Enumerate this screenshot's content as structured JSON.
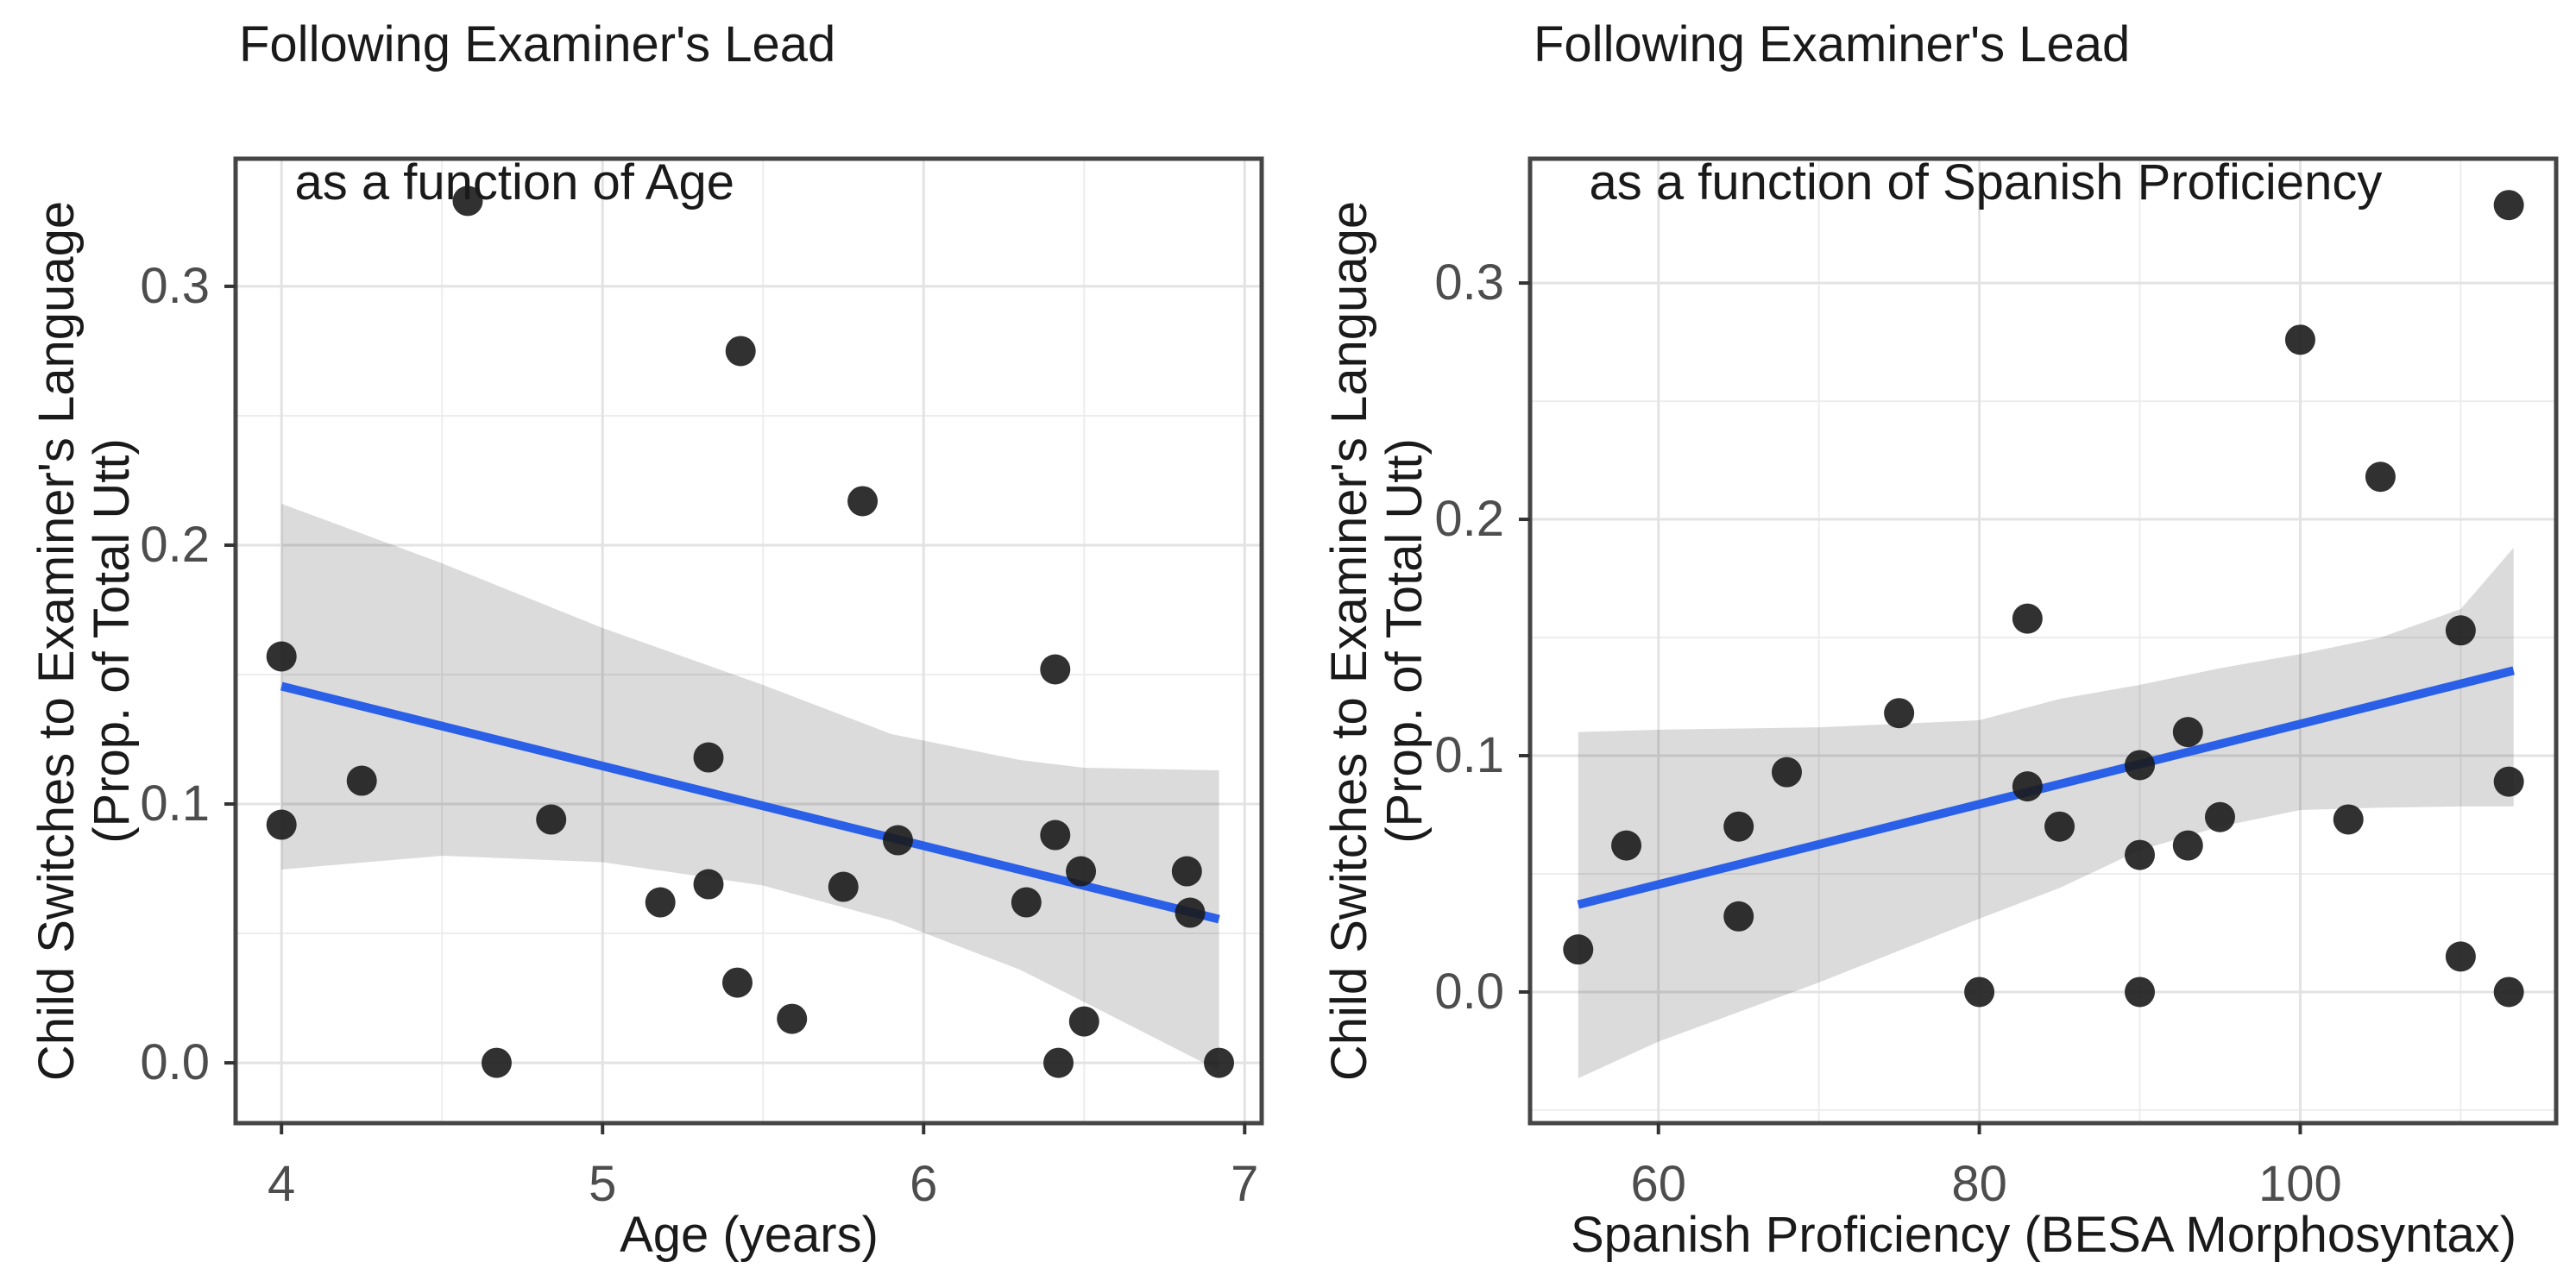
{
  "colors": {
    "background": "#ffffff",
    "point": "#1b1b1b",
    "smooth_line": "#2a5fe8",
    "ribbon": "rgba(0,0,0,0.14)",
    "grid_major": "#e3e3e3",
    "grid_minor": "#ededed",
    "panel_border": "#454545",
    "tick_mark": "#333333",
    "tick_label": "#4d4d4d",
    "text": "#1a1a1a"
  },
  "chart_data": [
    {
      "type": "scatter",
      "title_line1": "Following Examiner's Lead",
      "title_line2": "as a function of Age",
      "xlabel": "Age (years)",
      "ylabel_line1": "Child Switches to Examiner's Language",
      "ylabel_line2": "(Prop. of Total Utt)",
      "xlim": [
        3.857,
        7.053
      ],
      "ylim": [
        -0.0233,
        0.3493
      ],
      "grid": true,
      "legend": "none",
      "x_ticks": [
        {
          "v": 4,
          "label": "4"
        },
        {
          "v": 5,
          "label": "5"
        },
        {
          "v": 6,
          "label": "6"
        },
        {
          "v": 7,
          "label": "7"
        }
      ],
      "y_ticks": [
        {
          "v": 0.0,
          "label": "0.0"
        },
        {
          "v": 0.1,
          "label": "0.1"
        },
        {
          "v": 0.2,
          "label": "0.2"
        },
        {
          "v": 0.3,
          "label": "0.3"
        }
      ],
      "x_minor": [
        4.5,
        5.5,
        6.5
      ],
      "y_minor": [
        0.05,
        0.15,
        0.25
      ],
      "points": [
        [
          4.0,
          0.157
        ],
        [
          4.0,
          0.092
        ],
        [
          4.25,
          0.109
        ],
        [
          4.58,
          0.333
        ],
        [
          4.67,
          0.0
        ],
        [
          4.84,
          0.094
        ],
        [
          5.18,
          0.062
        ],
        [
          5.33,
          0.118
        ],
        [
          5.33,
          0.069
        ],
        [
          5.42,
          0.031
        ],
        [
          5.43,
          0.275
        ],
        [
          5.59,
          0.017
        ],
        [
          5.75,
          0.068
        ],
        [
          5.81,
          0.217
        ],
        [
          5.92,
          0.086
        ],
        [
          6.32,
          0.062
        ],
        [
          6.41,
          0.152
        ],
        [
          6.41,
          0.088
        ],
        [
          6.42,
          0.0
        ],
        [
          6.49,
          0.074
        ],
        [
          6.5,
          0.016
        ],
        [
          6.82,
          0.074
        ],
        [
          6.83,
          0.058
        ],
        [
          6.92,
          0.0
        ]
      ],
      "smooth": {
        "x1": 4.0,
        "y1": 0.1455,
        "x2": 6.92,
        "y2": 0.0555
      },
      "ribbon": {
        "x": [
          4.0,
          4.5,
          5.0,
          5.5,
          5.9,
          6.3,
          6.5,
          6.92
        ],
        "upper": [
          0.216,
          0.193,
          0.168,
          0.146,
          0.127,
          0.117,
          0.114,
          0.113
        ],
        "lower": [
          0.0747,
          0.08,
          0.0775,
          0.0685,
          0.055,
          0.036,
          0.0235,
          -0.003
        ]
      }
    },
    {
      "type": "scatter",
      "title_line1": "Following Examiner's Lead",
      "title_line2": "as a function of Spanish Proficiency",
      "xlabel": "Spanish Proficiency (BESA Morphosyntax)",
      "ylabel_line1": "Child Switches to Examiner's Language",
      "ylabel_line2": "(Prop. of Total Utt)",
      "xlim": [
        52.0,
        115.95
      ],
      "ylim": [
        -0.0555,
        0.3526
      ],
      "grid": true,
      "legend": "none",
      "x_ticks": [
        {
          "v": 60,
          "label": "60"
        },
        {
          "v": 80,
          "label": "80"
        },
        {
          "v": 100,
          "label": "100"
        }
      ],
      "y_ticks": [
        {
          "v": 0.0,
          "label": "0.0"
        },
        {
          "v": 0.1,
          "label": "0.1"
        },
        {
          "v": 0.2,
          "label": "0.2"
        },
        {
          "v": 0.3,
          "label": "0.3"
        }
      ],
      "x_minor": [
        70,
        90,
        110
      ],
      "y_minor": [
        -0.05,
        0.05,
        0.15,
        0.25
      ],
      "points": [
        [
          55,
          0.018
        ],
        [
          58,
          0.062
        ],
        [
          65,
          0.07
        ],
        [
          65,
          0.032
        ],
        [
          68,
          0.093
        ],
        [
          75,
          0.118
        ],
        [
          80,
          0.0
        ],
        [
          83,
          0.158
        ],
        [
          83,
          0.087
        ],
        [
          85,
          0.07
        ],
        [
          90,
          0.096
        ],
        [
          90,
          0.058
        ],
        [
          90,
          0.0
        ],
        [
          93,
          0.11
        ],
        [
          93,
          0.062
        ],
        [
          95,
          0.074
        ],
        [
          100,
          0.276
        ],
        [
          103,
          0.073
        ],
        [
          105,
          0.218
        ],
        [
          110,
          0.153
        ],
        [
          110,
          0.015
        ],
        [
          113,
          0.333
        ],
        [
          113,
          0.089
        ],
        [
          113,
          0.0
        ]
      ],
      "smooth": {
        "x1": 55.0,
        "y1": 0.037,
        "x2": 113.3,
        "y2": 0.136
      },
      "ribbon": {
        "x": [
          55,
          60,
          70,
          80,
          85,
          90,
          95,
          100,
          105,
          110,
          113.3
        ],
        "upper": [
          0.11,
          0.111,
          0.112,
          0.115,
          0.124,
          0.13,
          0.137,
          0.143,
          0.15,
          0.162,
          0.188
        ],
        "lower": [
          -0.0365,
          -0.021,
          0.004,
          0.031,
          0.044,
          0.06,
          0.07,
          0.077,
          0.078,
          0.0785,
          0.0785
        ]
      }
    }
  ]
}
